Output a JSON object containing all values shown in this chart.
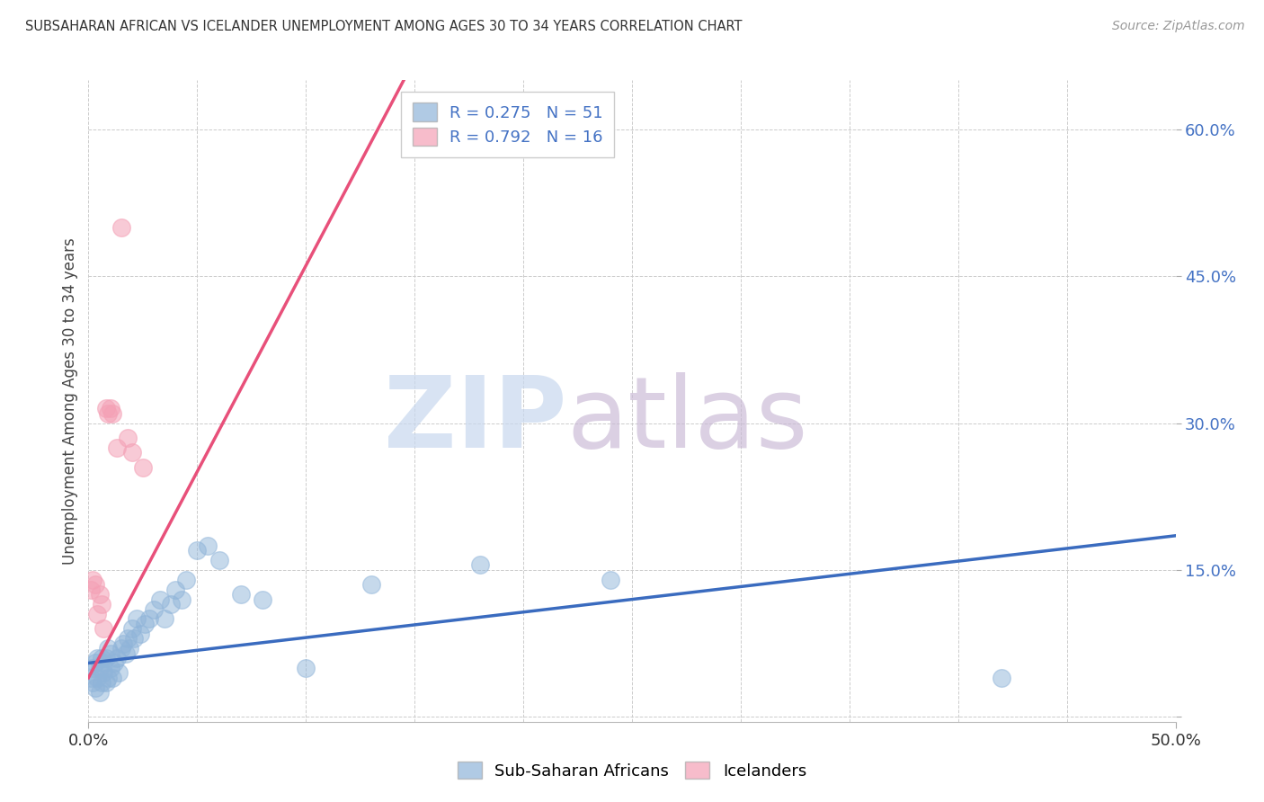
{
  "title": "SUBSAHARAN AFRICAN VS ICELANDER UNEMPLOYMENT AMONG AGES 30 TO 34 YEARS CORRELATION CHART",
  "source": "Source: ZipAtlas.com",
  "ylabel": "Unemployment Among Ages 30 to 34 years",
  "xlim": [
    0.0,
    0.5
  ],
  "ylim": [
    -0.005,
    0.65
  ],
  "ytick_positions": [
    0.0,
    0.15,
    0.3,
    0.45,
    0.6
  ],
  "ytick_labels": [
    "",
    "15.0%",
    "30.0%",
    "45.0%",
    "60.0%"
  ],
  "xtick_positions": [
    0.0,
    0.5
  ],
  "xtick_labels": [
    "0.0%",
    "50.0%"
  ],
  "grid_xticks": [
    0.05,
    0.1,
    0.15,
    0.2,
    0.25,
    0.3,
    0.35,
    0.4,
    0.45
  ],
  "background_color": "#ffffff",
  "grid_color": "#cccccc",
  "blue_color": "#8fb4d9",
  "pink_color": "#f4a0b5",
  "blue_line_color": "#3a6bbf",
  "pink_line_color": "#e8507a",
  "legend_r1": "R = 0.275",
  "legend_n1": "N = 51",
  "legend_r2": "R = 0.792",
  "legend_n2": "N = 16",
  "legend_label1": "Sub-Saharan Africans",
  "legend_label2": "Icelanders",
  "blue_scatter_x": [
    0.001,
    0.002,
    0.002,
    0.003,
    0.003,
    0.004,
    0.004,
    0.005,
    0.005,
    0.006,
    0.006,
    0.007,
    0.007,
    0.008,
    0.008,
    0.009,
    0.009,
    0.01,
    0.01,
    0.011,
    0.012,
    0.013,
    0.014,
    0.015,
    0.016,
    0.017,
    0.018,
    0.019,
    0.02,
    0.021,
    0.022,
    0.024,
    0.026,
    0.028,
    0.03,
    0.033,
    0.035,
    0.038,
    0.04,
    0.043,
    0.045,
    0.05,
    0.055,
    0.06,
    0.07,
    0.08,
    0.1,
    0.13,
    0.18,
    0.24,
    0.42
  ],
  "blue_scatter_y": [
    0.04,
    0.035,
    0.05,
    0.03,
    0.055,
    0.04,
    0.06,
    0.025,
    0.05,
    0.035,
    0.06,
    0.045,
    0.055,
    0.035,
    0.06,
    0.04,
    0.07,
    0.05,
    0.065,
    0.04,
    0.055,
    0.06,
    0.045,
    0.07,
    0.075,
    0.065,
    0.08,
    0.07,
    0.09,
    0.08,
    0.1,
    0.085,
    0.095,
    0.1,
    0.11,
    0.12,
    0.1,
    0.115,
    0.13,
    0.12,
    0.14,
    0.17,
    0.175,
    0.16,
    0.125,
    0.12,
    0.05,
    0.135,
    0.155,
    0.14,
    0.04
  ],
  "pink_scatter_x": [
    0.001,
    0.002,
    0.003,
    0.004,
    0.005,
    0.006,
    0.007,
    0.008,
    0.009,
    0.01,
    0.011,
    0.013,
    0.015,
    0.018,
    0.02,
    0.025
  ],
  "pink_scatter_y": [
    0.13,
    0.14,
    0.135,
    0.105,
    0.125,
    0.115,
    0.09,
    0.315,
    0.31,
    0.315,
    0.31,
    0.275,
    0.5,
    0.285,
    0.27,
    0.255
  ],
  "blue_line_x0": 0.0,
  "blue_line_x1": 0.5,
  "blue_line_y0": 0.055,
  "blue_line_y1": 0.185,
  "pink_line_x0": 0.0,
  "pink_line_x1": 0.145,
  "pink_line_y0": 0.04,
  "pink_line_y1": 0.65
}
